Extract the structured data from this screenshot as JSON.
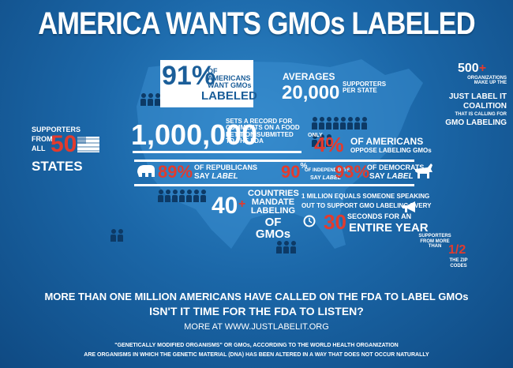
{
  "title": "AMERICA WANTS GMOs LABELED",
  "stat_91": {
    "pct": "91%",
    "text": "OF AMERICANS WANT GMOs",
    "label": "LABELED"
  },
  "stat_supporters": {
    "prefix": "AVERAGES",
    "number": "20,000",
    "suffix": "SUPPORTERS PER STATE"
  },
  "stat_orgs": {
    "number": "500",
    "plus": "+",
    "text1": "ORGANIZATIONS MAKE UP THE",
    "text2": "JUST LABEL IT",
    "text3": "COALITION",
    "text4": "THAT IS CALLING FOR",
    "text5": "GMO LABELING"
  },
  "stat_states": {
    "line1": "SUPPORTERS",
    "line2": "FROM",
    "line3": "ALL",
    "num": "50",
    "line4": "STATES"
  },
  "stat_million": {
    "number": "1,000,000",
    "text": "SETS A RECORD FOR COMMENTS ON A FOOD PETITION SUBMITTED TO THE FDA"
  },
  "stat_4": {
    "only": "ONLY",
    "pct": "4%",
    "line1": "OF AMERICANS",
    "line2": "OPPOSE LABELING GMOs"
  },
  "stat_rep": {
    "pct": "89%",
    "text1": "OF REPUBLICANS",
    "text2": "SAY",
    "text3": "LABEL"
  },
  "stat_ind": {
    "pct": "90",
    "pct_sign": "%",
    "text1": "OF INDEPENDENTS",
    "text2": "SAY",
    "text3": "LABEL"
  },
  "stat_dem": {
    "pct": "93%",
    "text1": "OF DEMOCRATS",
    "text2": "SAY",
    "text3": "LABEL"
  },
  "stat_40": {
    "num": "40",
    "plus": "+",
    "l1": "COUNTRIES",
    "l2": "MANDATE",
    "l3": "LABELING",
    "l4": "OF GMOs"
  },
  "stat_year": {
    "l1a": "1 MILLION EQUALS",
    "l1b": "SOMEONE SPEAKING",
    "l2": "OUT TO SUPPORT GMO LABELING EVERY",
    "num": "30",
    "l3": "SECONDS FOR AN",
    "l4": "ENTIRE YEAR"
  },
  "stat_zip": {
    "l1": "SUPPORTERS",
    "l2": "FROM MORE",
    "l3": "THAN",
    "num": "1/2",
    "l4": "THE ZIP",
    "l5": "CODES"
  },
  "footer": {
    "line1": "MORE THAN ONE MILLION AMERICANS HAVE CALLED ON THE FDA TO LABEL GMOs",
    "line2": "ISN'T IT TIME FOR THE FDA TO LISTEN?",
    "line3": "MORE AT WWW.JUSTLABELIT.ORG",
    "def1": "\"GENETICALLY MODIFIED ORGANISMS\" OR GMOs, ACCORDING TO THE WORLD HEALTH ORGANIZATION",
    "def2": "ARE ORGANISMS IN WHICH THE GENETIC MATERIAL (DNA) HAS BEEN ALTERED IN A WAY THAT DOES NOT OCCUR NATURALLY"
  },
  "colors": {
    "background": "#1b67a8",
    "accent_red": "#e23b2e",
    "dark_people": "#0d3a66",
    "white": "#ffffff"
  },
  "icons": [
    "us-map-icon",
    "person-icon",
    "us-flag-icon",
    "republican-elephant-icon",
    "democrat-donkey-icon",
    "clock-icon",
    "megaphone-icon"
  ]
}
